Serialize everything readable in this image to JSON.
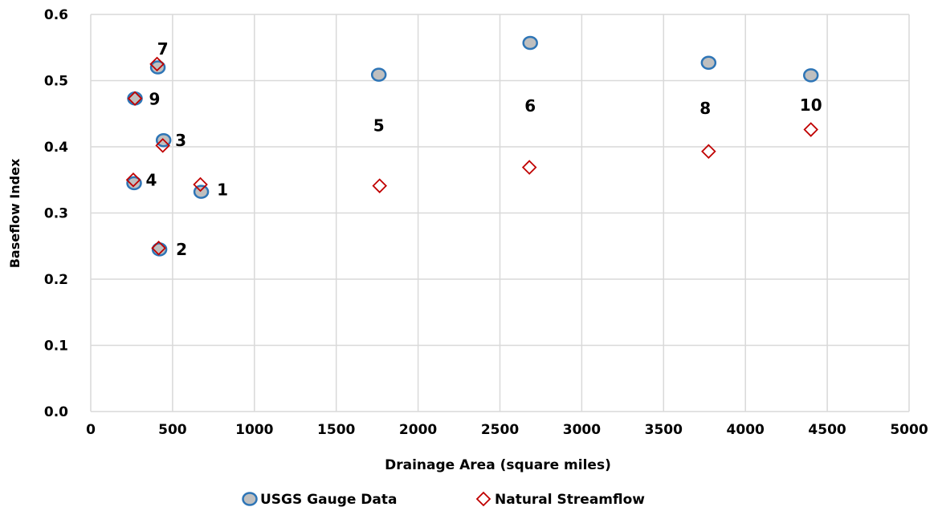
{
  "chart_data": {
    "type": "scatter",
    "title": "",
    "xlabel": "Drainage Area (square miles)",
    "ylabel": "Baseflow Index",
    "xlim": [
      0,
      5000
    ],
    "ylim": [
      0,
      0.6
    ],
    "x_ticks": [
      "0",
      "500",
      "1000",
      "1500",
      "2000",
      "2500",
      "3000",
      "3500",
      "4000",
      "4500",
      "5000"
    ],
    "y_ticks": [
      "0.0",
      "0.1",
      "0.2",
      "0.3",
      "0.4",
      "0.5",
      "0.6"
    ],
    "grid": true,
    "legend_position": "bottom",
    "series": [
      {
        "name": "USGS Gauge Data",
        "marker": "circle",
        "fill": "#bfbfbf",
        "stroke": "#2e75b6",
        "points": [
          {
            "x": 265,
            "y": 0.345
          },
          {
            "x": 270,
            "y": 0.473
          },
          {
            "x": 410,
            "y": 0.52
          },
          {
            "x": 420,
            "y": 0.245
          },
          {
            "x": 445,
            "y": 0.41
          },
          {
            "x": 675,
            "y": 0.332
          },
          {
            "x": 1760,
            "y": 0.509
          },
          {
            "x": 2685,
            "y": 0.557
          },
          {
            "x": 3775,
            "y": 0.527
          },
          {
            "x": 4400,
            "y": 0.508
          }
        ]
      },
      {
        "name": "Natural Streamflow",
        "marker": "diamond",
        "fill": "#ffffff",
        "stroke": "#c00000",
        "points": [
          {
            "x": 260,
            "y": 0.35
          },
          {
            "x": 270,
            "y": 0.473
          },
          {
            "x": 405,
            "y": 0.525
          },
          {
            "x": 415,
            "y": 0.247
          },
          {
            "x": 440,
            "y": 0.402
          },
          {
            "x": 670,
            "y": 0.343
          },
          {
            "x": 1765,
            "y": 0.341
          },
          {
            "x": 2680,
            "y": 0.369
          },
          {
            "x": 3775,
            "y": 0.393
          },
          {
            "x": 4400,
            "y": 0.426
          }
        ]
      }
    ],
    "annotations": [
      {
        "text": "7",
        "x": 440,
        "y": 0.548
      },
      {
        "text": "9",
        "x": 390,
        "y": 0.472
      },
      {
        "text": "3",
        "x": 550,
        "y": 0.41
      },
      {
        "text": "4",
        "x": 370,
        "y": 0.35
      },
      {
        "text": "1",
        "x": 805,
        "y": 0.335
      },
      {
        "text": "2",
        "x": 555,
        "y": 0.245
      },
      {
        "text": "5",
        "x": 1760,
        "y": 0.432
      },
      {
        "text": "6",
        "x": 2685,
        "y": 0.462
      },
      {
        "text": "8",
        "x": 3755,
        "y": 0.458
      },
      {
        "text": "10",
        "x": 4400,
        "y": 0.463
      }
    ]
  }
}
